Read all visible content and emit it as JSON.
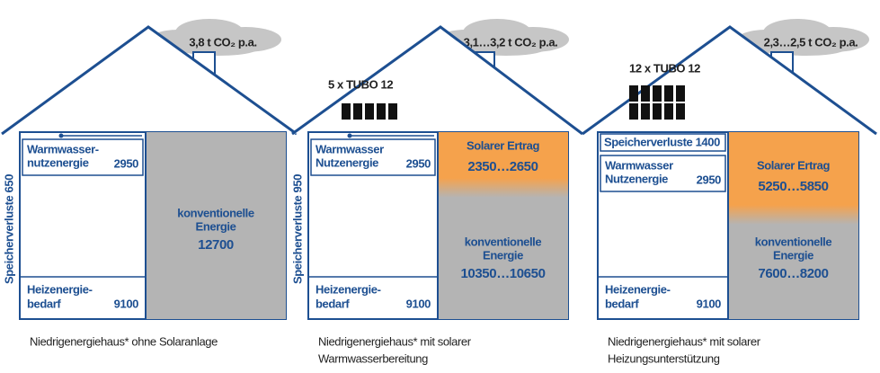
{
  "houses": [
    {
      "co2": "3,8 t CO₂ p.a.",
      "storage_loss": "Speicherverluste 650",
      "hot_water": {
        "lines": [
          "Warmwasser-",
          "nutzenergie"
        ],
        "value": 2950
      },
      "heating": {
        "lines": [
          "Heizenergie-",
          "bedarf"
        ],
        "value": 9100
      },
      "conventional": {
        "lines": [
          "konventionelle",
          "Energie"
        ],
        "value": 12700
      },
      "caption": [
        "Niedrigenergiehaus* ohne Solaranlage"
      ]
    },
    {
      "co2": "3,1…3,2 t CO₂ p.a.",
      "panels_label": "5 x TUBO 12",
      "storage_loss": "Speicherverluste 950",
      "hot_water": {
        "lines": [
          "Warmwasser",
          "Nutzenergie"
        ],
        "value": 2950
      },
      "heating": {
        "lines": [
          "Heizenergie-",
          "bedarf"
        ],
        "value": 9100
      },
      "solar": {
        "lines": [
          "Solarer Ertrag"
        ],
        "value": "2350…2650"
      },
      "conventional": {
        "lines": [
          "konventionelle",
          "Energie"
        ],
        "value": "10350…10650"
      },
      "caption": [
        "Niedrigenergiehaus* mit solarer",
        "Warmwasserbereitung"
      ]
    },
    {
      "co2": "2,3…2,5 t CO₂ p.a.",
      "panels_label": "12 x TUBO 12",
      "storage_loss": "Speicherverluste 1400",
      "hot_water": {
        "lines": [
          "Warmwasser",
          "Nutzenergie"
        ],
        "value": 2950
      },
      "heating": {
        "lines": [
          "Heizenergie-",
          "bedarf"
        ],
        "value": 9100
      },
      "solar": {
        "lines": [
          "Solarer Ertrag"
        ],
        "value": "5250…5850"
      },
      "conventional": {
        "lines": [
          "konventionelle",
          "Energie"
        ],
        "value": "7600…8200"
      },
      "caption": [
        "Niedrigenergiehaus* mit solarer",
        "Heizungsunterstützung"
      ]
    }
  ]
}
